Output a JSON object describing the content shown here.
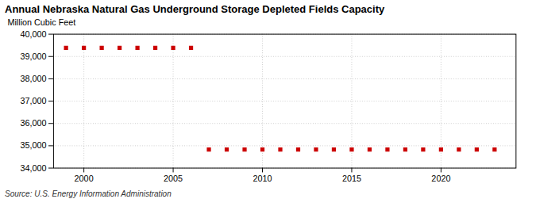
{
  "chart_data": {
    "type": "scatter",
    "title": "Annual Nebraska Natural Gas Underground Storage Depleted Fields Capacity",
    "ylabel": "Million Cubic Feet",
    "annotations": [
      "Source: U.S. Energy Information Administration"
    ],
    "color": "#cc0000",
    "marker": "square",
    "grid": true,
    "x": [
      1999,
      2000,
      2001,
      2002,
      2003,
      2004,
      2005,
      2006,
      2007,
      2008,
      2009,
      2010,
      2011,
      2012,
      2013,
      2014,
      2015,
      2016,
      2017,
      2018,
      2019,
      2020,
      2021,
      2022,
      2023
    ],
    "values": [
      39390,
      39390,
      39390,
      39390,
      39390,
      39390,
      39390,
      39390,
      34830,
      34830,
      34830,
      34830,
      34830,
      34830,
      34830,
      34830,
      34830,
      34830,
      34830,
      34830,
      34830,
      34830,
      34830,
      34830,
      34830
    ],
    "xlim": [
      1998.3,
      2024.2
    ],
    "xticks": [
      2000,
      2005,
      2010,
      2015,
      2020
    ],
    "ylim": [
      34000,
      40000
    ],
    "yticks": [
      {
        "value": 34000,
        "label": "34,000"
      },
      {
        "value": 35000,
        "label": "35,000"
      },
      {
        "value": 36000,
        "label": "36,000"
      },
      {
        "value": 37000,
        "label": "37,000"
      },
      {
        "value": 38000,
        "label": "38,000"
      },
      {
        "value": 39000,
        "label": "39,000"
      },
      {
        "value": 40000,
        "label": "40,000"
      }
    ]
  }
}
